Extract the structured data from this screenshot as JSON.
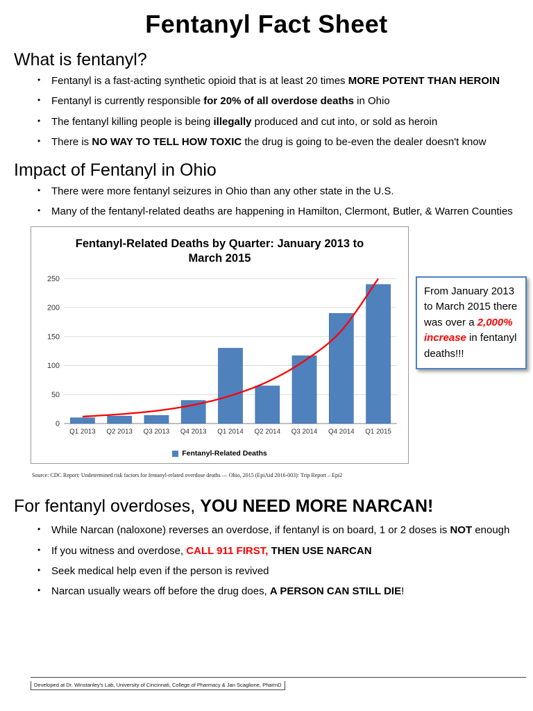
{
  "page": {
    "title": "Fentanyl Fact Sheet"
  },
  "section_what": {
    "heading": "What is fentanyl?",
    "bullets": [
      [
        {
          "t": "Fentanyl is a fast-acting synthetic opioid that is at least 20 times "
        },
        {
          "t": "MORE POTENT THAN HEROIN",
          "b": true
        }
      ],
      [
        {
          "t": "Fentanyl is currently responsible "
        },
        {
          "t": "for 20% of all overdose deaths",
          "b": true
        },
        {
          "t": " in Ohio"
        }
      ],
      [
        {
          "t": "The fentanyl killing people is being "
        },
        {
          "t": "illegally",
          "b": true
        },
        {
          "t": " produced and cut into, or sold as heroin"
        }
      ],
      [
        {
          "t": "There is "
        },
        {
          "t": "NO WAY TO TELL HOW TOXIC",
          "b": true
        },
        {
          "t": " the drug is going to be-even the dealer doesn't know"
        }
      ]
    ]
  },
  "section_impact": {
    "heading": "Impact of Fentanyl in Ohio",
    "bullets": [
      [
        {
          "t": "There were more fentanyl seizures in Ohio than any other state in the U.S."
        }
      ],
      [
        {
          "t": "Many of the fentanyl-related deaths are happening in Hamilton, Clermont, Butler,  & Warren Counties"
        }
      ]
    ]
  },
  "chart_data": {
    "type": "bar",
    "title": "Fentanyl-Related Deaths by Quarter: January 2013 to March 2015",
    "categories": [
      "Q1 2013",
      "Q2 2013",
      "Q3 2013",
      "Q4 2013",
      "Q1 2014",
      "Q2 2014",
      "Q3 2014",
      "Q4 2014",
      "Q1 2015"
    ],
    "values": [
      10,
      13,
      14,
      40,
      130,
      65,
      117,
      190,
      240
    ],
    "trend": [
      12,
      16,
      22,
      32,
      48,
      72,
      108,
      160,
      250
    ],
    "ylim": [
      0,
      250
    ],
    "ytick_step": 50,
    "grid": true,
    "legend": "Fentanyl-Related Deaths",
    "legend_position": "bottom",
    "bar_color": "#4F81BD",
    "trend_color": "#FF0000",
    "xlabel": "",
    "ylabel": ""
  },
  "callout": {
    "segments": [
      {
        "t": "From January 2013 to March 2015 there was over a "
      },
      {
        "t": "2,000% increase",
        "b": true,
        "i": true,
        "c": "#FF0000"
      },
      {
        "t": " in fentanyl deaths!!!"
      }
    ]
  },
  "source": "Source: CDC Report: Undetermined risk factors for fentanyl-related overdose deaths — Ohio, 2015 (EpiAid 2016-003): Trip Report – Epi2",
  "section_narcan": {
    "heading_segments": [
      {
        "t": "For fentanyl overdoses, "
      },
      {
        "t": "YOU NEED MORE NARCAN!",
        "b": true
      }
    ],
    "bullets": [
      [
        {
          "t": "While Narcan (naloxone) reverses an overdose, if fentanyl is on board, 1 or 2 doses is "
        },
        {
          "t": "NOT",
          "b": true
        },
        {
          "t": " enough"
        }
      ],
      [
        {
          "t": "If you witness and overdose, "
        },
        {
          "t": "CALL 911 FIRST",
          "b": true,
          "c": "#FF0000"
        },
        {
          "t": ", ",
          "b": true,
          "c": "#FF0000"
        },
        {
          "t": "THEN USE NARCAN",
          "b": true
        }
      ],
      [
        {
          "t": "Seek medical help even if the person is revived"
        }
      ],
      [
        {
          "t": "Narcan usually wears off before the drug does, "
        },
        {
          "t": "A PERSON CAN STILL DIE",
          "b": true
        },
        {
          "t": "!"
        }
      ]
    ]
  },
  "footer": {
    "text": "Developed at Dr. Winstanley's Lab, University of Cincinnati, College of Pharmacy & Jan Scaglione, PharmD"
  }
}
